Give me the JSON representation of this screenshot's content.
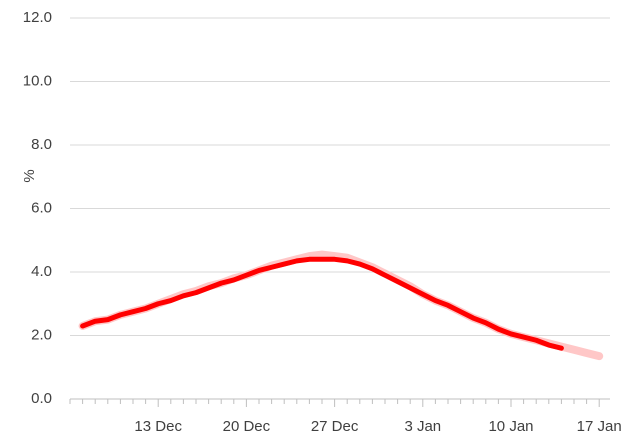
{
  "chart_data": {
    "type": "line",
    "y_label": "%",
    "categories": [
      null,
      null,
      null,
      null,
      null,
      null,
      null,
      "13 Dec",
      null,
      null,
      null,
      null,
      null,
      null,
      "20 Dec",
      null,
      null,
      null,
      null,
      null,
      null,
      "27 Dec",
      null,
      null,
      null,
      null,
      null,
      null,
      "3 Jan",
      null,
      null,
      null,
      null,
      null,
      null,
      "10 Jan",
      null,
      null,
      null,
      null,
      null,
      null,
      "17 Jan"
    ],
    "series": [
      {
        "color": "#ffc7c7",
        "values": [
          null,
          2.3,
          2.45,
          2.5,
          2.65,
          2.75,
          2.85,
          3.0,
          3.15,
          3.3,
          3.4,
          3.55,
          3.65,
          3.8,
          3.9,
          4.05,
          4.2,
          4.3,
          4.4,
          4.5,
          4.55,
          4.5,
          4.45,
          4.3,
          4.15,
          3.95,
          3.75,
          3.55,
          3.3,
          3.1,
          2.95,
          2.75,
          2.55,
          2.4,
          2.2,
          2.05,
          1.95,
          1.85,
          1.75,
          1.65,
          1.55,
          1.45,
          1.35
        ]
      },
      {
        "color": "#ff0000",
        "values": [
          null,
          2.3,
          2.45,
          2.5,
          2.65,
          2.75,
          2.85,
          3.0,
          3.1,
          3.25,
          3.35,
          3.5,
          3.65,
          3.75,
          3.9,
          4.05,
          4.15,
          4.25,
          4.35,
          4.4,
          4.4,
          4.4,
          4.35,
          4.25,
          4.1,
          3.9,
          3.7,
          3.5,
          3.3,
          3.1,
          2.95,
          2.75,
          2.55,
          2.4,
          2.2,
          2.05,
          1.95,
          1.85,
          1.7,
          1.6,
          null,
          null,
          null
        ]
      }
    ],
    "ylim": [
      0,
      12
    ],
    "yticks": [
      {
        "value": 0,
        "label": "0.0"
      },
      {
        "value": 2,
        "label": "2.0"
      },
      {
        "value": 4,
        "label": "4.0"
      },
      {
        "value": 6,
        "label": "6.0"
      },
      {
        "value": 8,
        "label": "8.0"
      },
      {
        "value": 10,
        "label": "10.0"
      },
      {
        "value": 12,
        "label": "12.0"
      }
    ],
    "grid": true
  }
}
